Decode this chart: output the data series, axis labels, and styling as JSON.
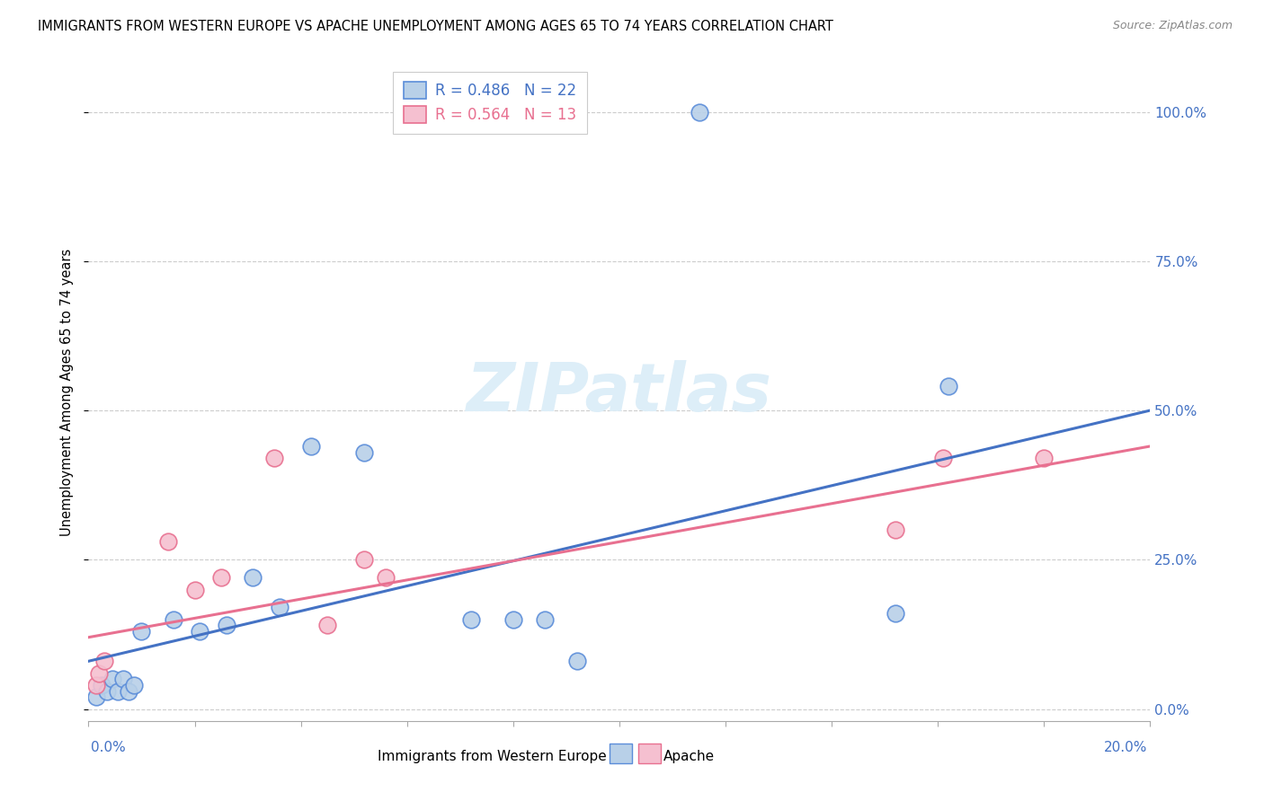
{
  "title": "IMMIGRANTS FROM WESTERN EUROPE VS APACHE UNEMPLOYMENT AMONG AGES 65 TO 74 YEARS CORRELATION CHART",
  "source": "Source: ZipAtlas.com",
  "ylabel": "Unemployment Among Ages 65 to 74 years",
  "ytick_values": [
    0,
    25,
    50,
    75,
    100
  ],
  "xlim": [
    0,
    20
  ],
  "ylim": [
    -2,
    108
  ],
  "legend_label1": "Immigrants from Western Europe",
  "legend_label2": "Apache",
  "R1": "0.486",
  "N1": "22",
  "R2": "0.564",
  "N2": "13",
  "color_blue": "#b8d0e8",
  "color_blue_dark": "#5b8dd9",
  "color_blue_line": "#4472c4",
  "color_pink": "#f5c0d0",
  "color_pink_dark": "#e87090",
  "color_pink_line": "#e87090",
  "watermark_color": "#ddeef8",
  "blue_points_x": [
    0.15,
    0.25,
    0.35,
    0.45,
    0.55,
    0.65,
    0.75,
    0.85,
    1.0,
    1.6,
    2.1,
    2.6,
    3.1,
    3.6,
    4.2,
    5.2,
    7.2,
    8.0,
    8.6,
    9.2,
    15.2,
    16.2
  ],
  "blue_points_y": [
    2,
    4,
    3,
    5,
    3,
    5,
    3,
    4,
    13,
    15,
    13,
    14,
    22,
    17,
    44,
    43,
    15,
    15,
    15,
    8,
    16,
    54
  ],
  "pink_points_x": [
    0.15,
    0.2,
    0.3,
    1.5,
    2.0,
    2.5,
    3.5,
    4.5,
    5.2,
    5.6,
    15.2,
    16.1,
    18.0
  ],
  "pink_points_y": [
    4,
    6,
    8,
    28,
    20,
    22,
    42,
    14,
    25,
    22,
    30,
    42,
    42
  ],
  "blue_outlier_x": 11.5,
  "blue_outlier_y": 100,
  "blue_line_x": [
    0,
    20
  ],
  "blue_line_y": [
    8,
    50
  ],
  "pink_line_x": [
    0,
    20
  ],
  "pink_line_y": [
    12,
    44
  ],
  "xtick_positions": [
    0,
    2,
    4,
    6,
    8,
    10,
    12,
    14,
    16,
    18,
    20
  ]
}
